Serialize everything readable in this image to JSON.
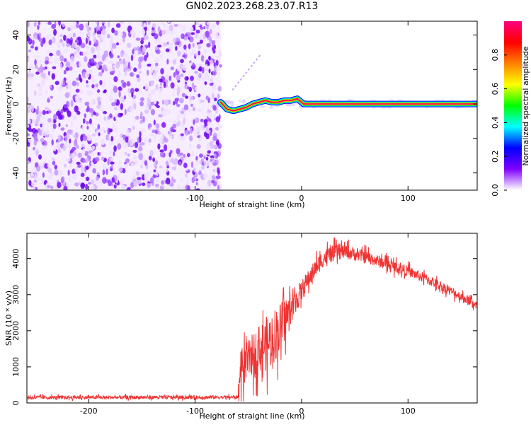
{
  "title": "GN02.2023.268.23.07.R13",
  "chart_data": [
    {
      "type": "heatmap",
      "xlabel": "Height of straight line (km)",
      "ylabel": "Frequency (Hz)",
      "xlim": [
        -258,
        165
      ],
      "ylim": [
        -50,
        48
      ],
      "x_ticks": [
        -200,
        -100,
        0,
        100
      ],
      "y_ticks": [
        -40,
        -20,
        0,
        20,
        40
      ],
      "colorbar": {
        "label": "Normalized spectral amplitude",
        "range": [
          0,
          1
        ],
        "ticks": [
          0.0,
          0.2,
          0.4,
          0.6,
          0.8
        ],
        "colors": [
          "#ffffff",
          "#8000ff",
          "#0000ff",
          "#00ffff",
          "#00ff00",
          "#ffff00",
          "#ff8000",
          "#ff0000",
          "#ff0080"
        ]
      },
      "regions": [
        {
          "name": "",
          "x_range": [
            -258,
            -76
          ],
          "freq_range": [
            -50,
            48
          ],
          "amplitude_range": [
            0.0,
            0.5
          ]
        },
        {
          "name": "",
          "x_range": [
            -76,
            165
          ],
          "freq_range": [
            -1,
            1
          ],
          "amplitude_range": [
            0.8,
            1.0
          ]
        }
      ],
      "trace": {
        "x": [
          -76,
          -70,
          -64,
          -58,
          -52,
          -46,
          -40,
          -34,
          -28,
          -22,
          -16,
          -10,
          -4,
          2,
          165
        ],
        "y": [
          1,
          -3,
          -4,
          -3,
          -2,
          0,
          1,
          2,
          1,
          1,
          2,
          2,
          3,
          0,
          0
        ]
      },
      "faint_streak": {
        "x": [
          -65,
          -38
        ],
        "y": [
          8,
          29
        ]
      }
    },
    {
      "type": "line",
      "xlabel": "Height of straight line (km)",
      "ylabel": "SNR (10 * v/v)",
      "xlim": [
        -258,
        165
      ],
      "ylim": [
        0,
        4700
      ],
      "x_ticks": [
        -200,
        -100,
        0,
        100
      ],
      "y_ticks": [
        0,
        1000,
        2000,
        3000,
        4000
      ],
      "color": "#ee3333",
      "series": [
        {
          "x": [
            -258,
            -60,
            -57,
            -50,
            -40,
            -30,
            -20,
            -10,
            0,
            10,
            20,
            30,
            40,
            60,
            80,
            100,
            120,
            140,
            160,
            165
          ],
          "y": [
            150,
            160,
            900,
            1200,
            1500,
            1700,
            2100,
            2600,
            3100,
            3600,
            4000,
            4150,
            4200,
            4050,
            3850,
            3650,
            3400,
            3100,
            2800,
            2700
          ],
          "noise": [
            50,
            50,
            500,
            550,
            650,
            800,
            700,
            400,
            300,
            250,
            250,
            220,
            200,
            180,
            160,
            150,
            140,
            130,
            130,
            130
          ]
        }
      ]
    }
  ]
}
